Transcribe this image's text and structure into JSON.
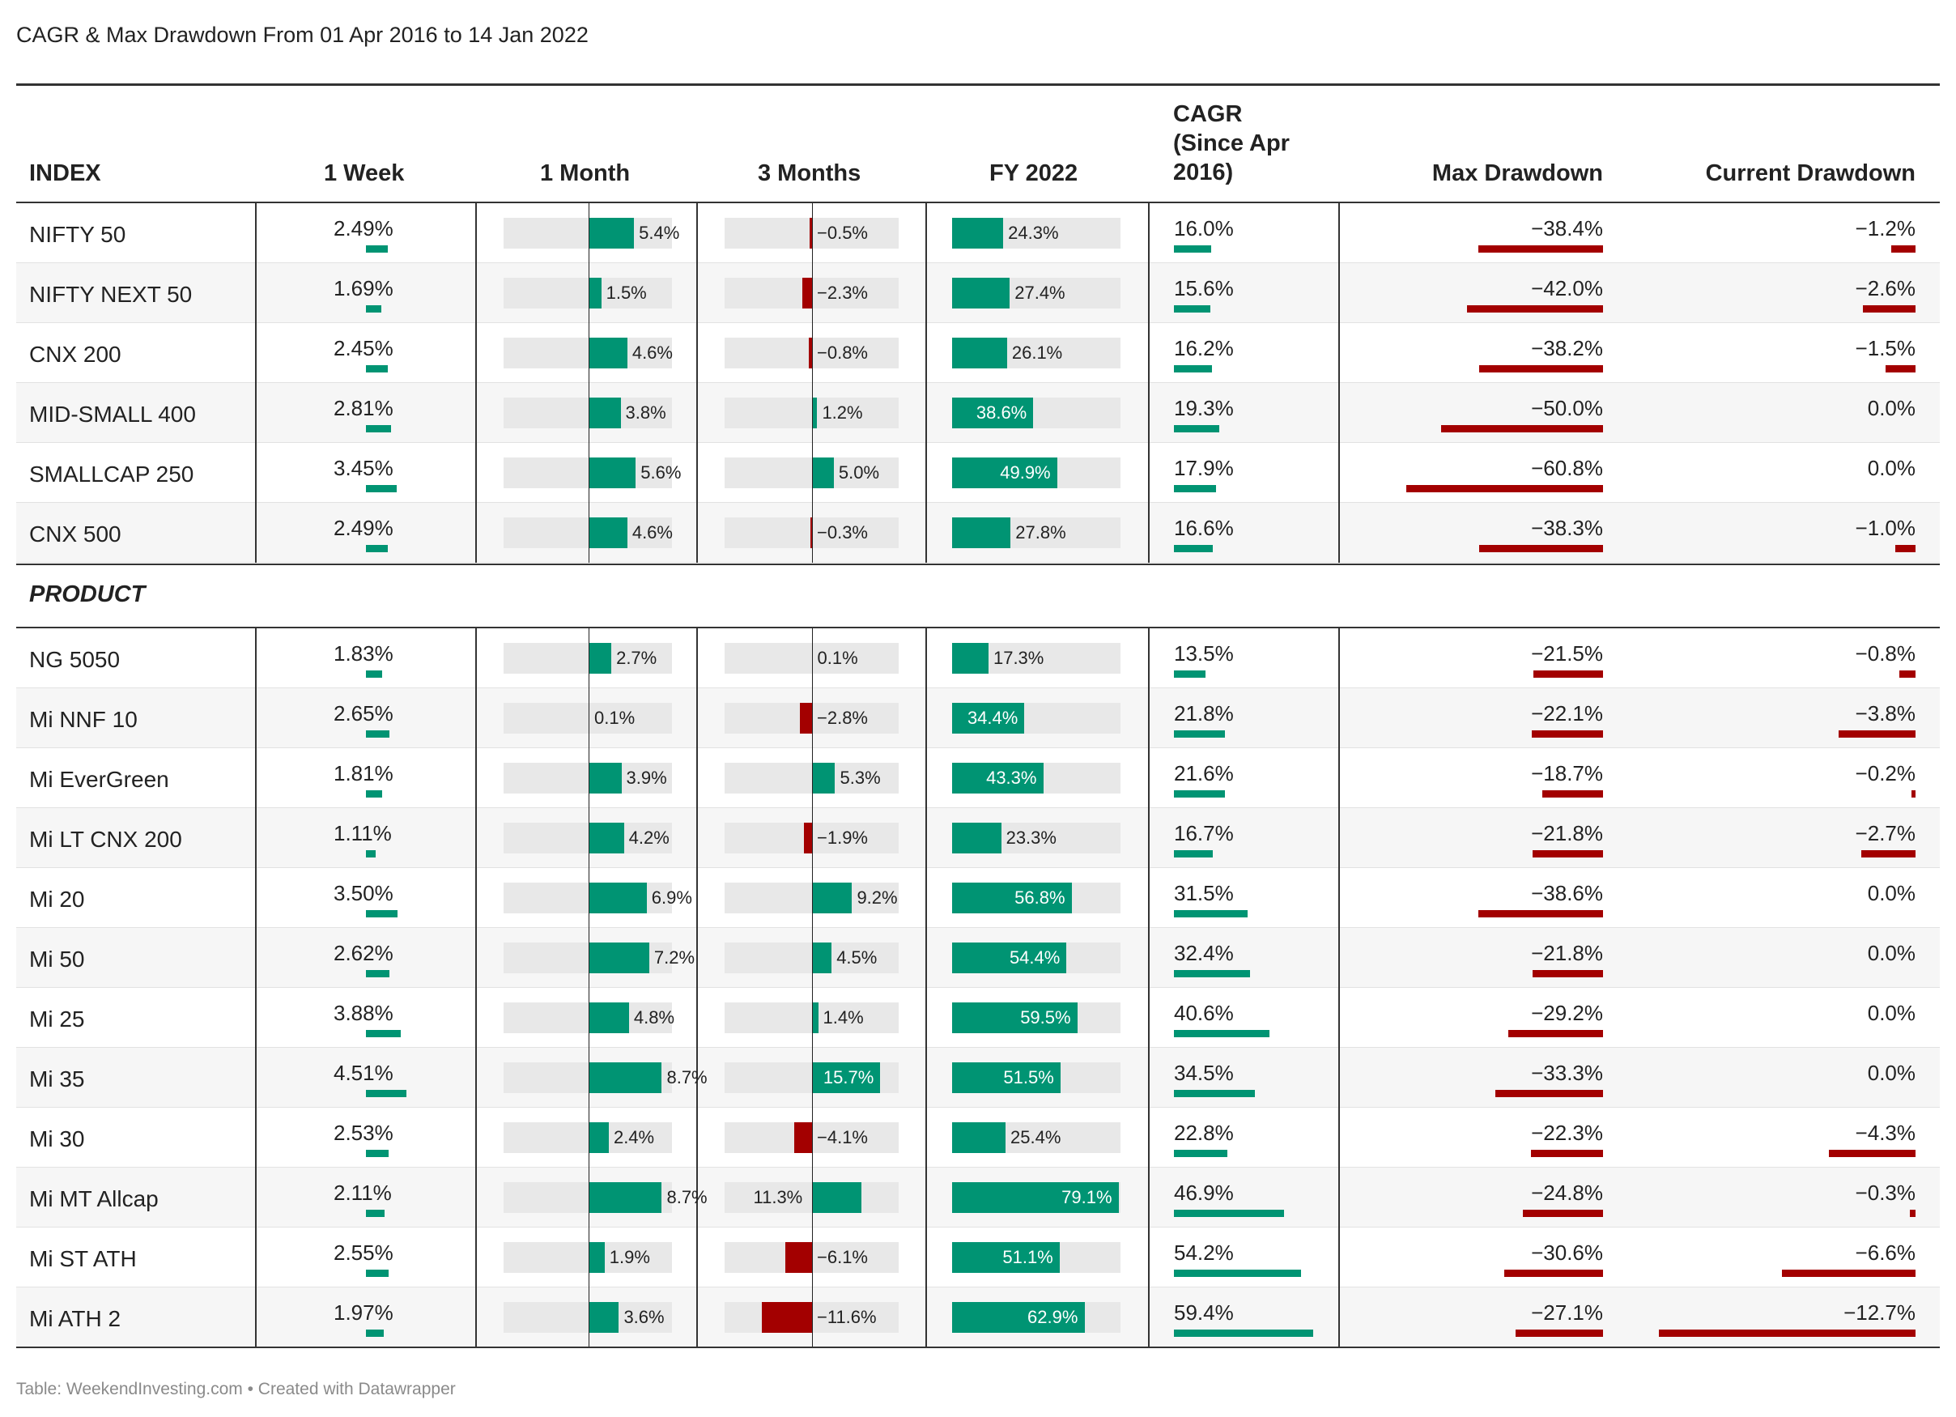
{
  "title": "CAGR & Max Drawdown From 01 Apr 2016 to 14 Jan 2022",
  "footer": "Table: WeekendInvesting.com • Created with Datawrapper",
  "columns": {
    "index": "INDEX",
    "week": "1 Week",
    "month": "1 Month",
    "months3": "3 Months",
    "fy": "FY 2022",
    "cagr": "CAGR (Since Apr 2016)",
    "maxdd": "Max Drawdown",
    "curdd": "Current Drawdown"
  },
  "product_heading": "PRODUCT",
  "colors": {
    "positive": "#009473",
    "negative": "#a30000",
    "track": "#e8e8e8"
  },
  "chart_data": {
    "type": "table",
    "title": "CAGR & Max Drawdown From 01 Apr 2016 to 14 Jan 2022",
    "index_rows": [
      {
        "name": "NIFTY 50",
        "week": "2.49%",
        "month": "5.4%",
        "m3": "−0.5%",
        "fy": "24.3%",
        "cagr": "16.0%",
        "maxdd": "−38.4%",
        "curdd": "−1.2%",
        "v": [
          2.49,
          5.4,
          -0.5,
          24.3,
          16.0,
          -38.4,
          -1.2
        ]
      },
      {
        "name": "NIFTY NEXT 50",
        "week": "1.69%",
        "month": "1.5%",
        "m3": "−2.3%",
        "fy": "27.4%",
        "cagr": "15.6%",
        "maxdd": "−42.0%",
        "curdd": "−2.6%",
        "v": [
          1.69,
          1.5,
          -2.3,
          27.4,
          15.6,
          -42.0,
          -2.6
        ]
      },
      {
        "name": "CNX 200",
        "week": "2.45%",
        "month": "4.6%",
        "m3": "−0.8%",
        "fy": "26.1%",
        "cagr": "16.2%",
        "maxdd": "−38.2%",
        "curdd": "−1.5%",
        "v": [
          2.45,
          4.6,
          -0.8,
          26.1,
          16.2,
          -38.2,
          -1.5
        ]
      },
      {
        "name": "MID-SMALL 400",
        "week": "2.81%",
        "month": "3.8%",
        "m3": "1.2%",
        "fy": "38.6%",
        "cagr": "19.3%",
        "maxdd": "−50.0%",
        "curdd": "0.0%",
        "v": [
          2.81,
          3.8,
          1.2,
          38.6,
          19.3,
          -50.0,
          0.0
        ]
      },
      {
        "name": "SMALLCAP 250",
        "week": "3.45%",
        "month": "5.6%",
        "m3": "5.0%",
        "fy": "49.9%",
        "cagr": "17.9%",
        "maxdd": "−60.8%",
        "curdd": "0.0%",
        "v": [
          3.45,
          5.6,
          5.0,
          49.9,
          17.9,
          -60.8,
          0.0
        ]
      },
      {
        "name": "CNX 500",
        "week": "2.49%",
        "month": "4.6%",
        "m3": "−0.3%",
        "fy": "27.8%",
        "cagr": "16.6%",
        "maxdd": "−38.3%",
        "curdd": "−1.0%",
        "v": [
          2.49,
          4.6,
          -0.3,
          27.8,
          16.6,
          -38.3,
          -1.0
        ]
      }
    ],
    "product_rows": [
      {
        "name": "NG 5050",
        "week": "1.83%",
        "month": "2.7%",
        "m3": "0.1%",
        "fy": "17.3%",
        "cagr": "13.5%",
        "maxdd": "−21.5%",
        "curdd": "−0.8%",
        "v": [
          1.83,
          2.7,
          0.1,
          17.3,
          13.5,
          -21.5,
          -0.8
        ]
      },
      {
        "name": "Mi NNF 10",
        "week": "2.65%",
        "month": "0.1%",
        "m3": "−2.8%",
        "fy": "34.4%",
        "cagr": "21.8%",
        "maxdd": "−22.1%",
        "curdd": "−3.8%",
        "v": [
          2.65,
          0.1,
          -2.8,
          34.4,
          21.8,
          -22.1,
          -3.8
        ]
      },
      {
        "name": "Mi EverGreen",
        "week": "1.81%",
        "month": "3.9%",
        "m3": "5.3%",
        "fy": "43.3%",
        "cagr": "21.6%",
        "maxdd": "−18.7%",
        "curdd": "−0.2%",
        "v": [
          1.81,
          3.9,
          5.3,
          43.3,
          21.6,
          -18.7,
          -0.2
        ]
      },
      {
        "name": "Mi LT CNX 200",
        "week": "1.11%",
        "month": "4.2%",
        "m3": "−1.9%",
        "fy": "23.3%",
        "cagr": "16.7%",
        "maxdd": "−21.8%",
        "curdd": "−2.7%",
        "v": [
          1.11,
          4.2,
          -1.9,
          23.3,
          16.7,
          -21.8,
          -2.7
        ]
      },
      {
        "name": "Mi 20",
        "week": "3.50%",
        "month": "6.9%",
        "m3": "9.2%",
        "fy": "56.8%",
        "cagr": "31.5%",
        "maxdd": "−38.6%",
        "curdd": "0.0%",
        "v": [
          3.5,
          6.9,
          9.2,
          56.8,
          31.5,
          -38.6,
          0.0
        ]
      },
      {
        "name": "Mi 50",
        "week": "2.62%",
        "month": "7.2%",
        "m3": "4.5%",
        "fy": "54.4%",
        "cagr": "32.4%",
        "maxdd": "−21.8%",
        "curdd": "0.0%",
        "v": [
          2.62,
          7.2,
          4.5,
          54.4,
          32.4,
          -21.8,
          0.0
        ]
      },
      {
        "name": "Mi 25",
        "week": "3.88%",
        "month": "4.8%",
        "m3": "1.4%",
        "fy": "59.5%",
        "cagr": "40.6%",
        "maxdd": "−29.2%",
        "curdd": "0.0%",
        "v": [
          3.88,
          4.8,
          1.4,
          59.5,
          40.6,
          -29.2,
          0.0
        ]
      },
      {
        "name": "Mi 35",
        "week": "4.51%",
        "month": "8.7%",
        "m3": "15.7%",
        "fy": "51.5%",
        "cagr": "34.5%",
        "maxdd": "−33.3%",
        "curdd": "0.0%",
        "v": [
          4.51,
          8.7,
          15.7,
          51.5,
          34.5,
          -33.3,
          0.0
        ]
      },
      {
        "name": "Mi 30",
        "week": "2.53%",
        "month": "2.4%",
        "m3": "−4.1%",
        "fy": "25.4%",
        "cagr": "22.8%",
        "maxdd": "−22.3%",
        "curdd": "−4.3%",
        "v": [
          2.53,
          2.4,
          -4.1,
          25.4,
          22.8,
          -22.3,
          -4.3
        ]
      },
      {
        "name": "Mi MT Allcap",
        "week": "2.11%",
        "month": "8.7%",
        "m3": "11.3%",
        "fy": "79.1%",
        "cagr": "46.9%",
        "maxdd": "−24.8%",
        "curdd": "−0.3%",
        "v": [
          2.11,
          8.7,
          11.3,
          79.1,
          46.9,
          -24.8,
          -0.3
        ]
      },
      {
        "name": "Mi ST ATH",
        "week": "2.55%",
        "month": "1.9%",
        "m3": "−6.1%",
        "fy": "51.1%",
        "cagr": "54.2%",
        "maxdd": "−30.6%",
        "curdd": "−6.6%",
        "v": [
          2.55,
          1.9,
          -6.1,
          51.1,
          54.2,
          -30.6,
          -6.6
        ]
      },
      {
        "name": "Mi ATH 2",
        "week": "1.97%",
        "month": "3.6%",
        "m3": "−11.6%",
        "fy": "62.9%",
        "cagr": "59.4%",
        "maxdd": "−27.1%",
        "curdd": "−12.7%",
        "v": [
          1.97,
          3.6,
          -11.6,
          62.9,
          59.4,
          -27.1,
          -12.7
        ]
      }
    ]
  }
}
